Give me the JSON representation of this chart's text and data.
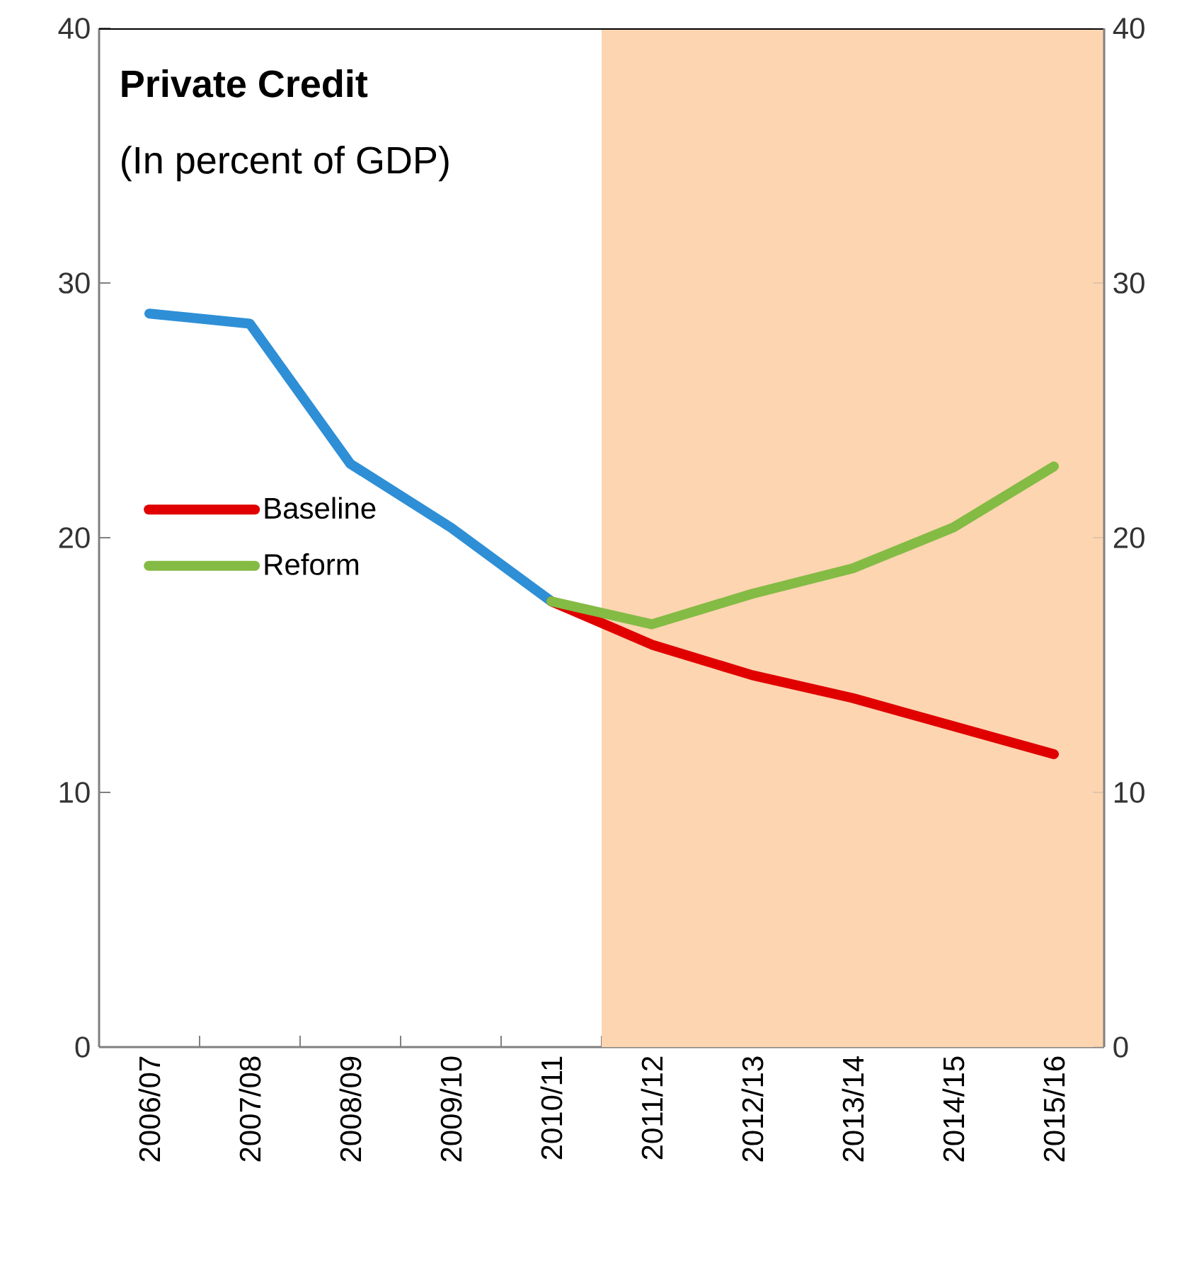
{
  "chart_data": {
    "type": "line",
    "title": "Private Credit",
    "subtitle": "(In percent of GDP)",
    "categories": [
      "2006/07",
      "2007/08",
      "2008/09",
      "2009/10",
      "2010/11",
      "2011/12",
      "2012/13",
      "2013/14",
      "2014/15",
      "2015/16"
    ],
    "series": [
      {
        "color": "#2e8fd6",
        "values": [
          28.8,
          28.4,
          22.9,
          20.4,
          17.5,
          null,
          null,
          null,
          null,
          null
        ]
      },
      {
        "name": "Baseline",
        "color": "#e00000",
        "values": [
          null,
          null,
          null,
          null,
          17.5,
          15.8,
          14.6,
          13.7,
          12.6,
          11.5
        ]
      },
      {
        "name": "Reform",
        "color": "#84bb44",
        "values": [
          null,
          null,
          null,
          null,
          17.5,
          16.6,
          17.8,
          18.8,
          20.4,
          22.8
        ]
      }
    ],
    "ylim": [
      0,
      40
    ],
    "yticks": [
      0,
      10,
      20,
      30,
      40
    ],
    "y2lim": [
      0,
      40
    ],
    "y2ticks": [
      0,
      10,
      20,
      30,
      40
    ],
    "bands": [
      {
        "axis": "x",
        "from": "2011/12",
        "to": "2015/16",
        "color": "#fdd5b1"
      }
    ],
    "legend": "left",
    "grid": false,
    "marker": "none",
    "line_style": "solid"
  }
}
